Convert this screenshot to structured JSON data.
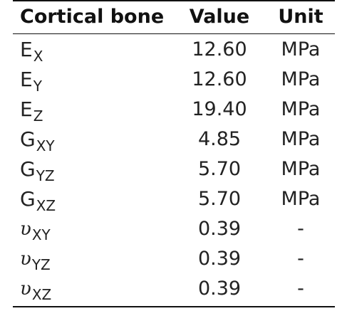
{
  "table": {
    "headers": {
      "property": "Cortical bone",
      "value": "Value",
      "unit": "Unit"
    },
    "rows": [
      {
        "symbol": "E",
        "subscript": "X",
        "value": "12.60",
        "unit": "MPa"
      },
      {
        "symbol": "E",
        "subscript": "Y",
        "value": "12.60",
        "unit": "MPa"
      },
      {
        "symbol": "E",
        "subscript": "Z",
        "value": "19.40",
        "unit": "MPa"
      },
      {
        "symbol": "G",
        "subscript": "XY",
        "value": "4.85",
        "unit": "MPa"
      },
      {
        "symbol": "G",
        "subscript": "YZ",
        "value": "5.70",
        "unit": "MPa"
      },
      {
        "symbol": "G",
        "subscript": "XZ",
        "value": "5.70",
        "unit": "MPa"
      },
      {
        "symbol": "υ",
        "subscript": "XY",
        "value": "0.39",
        "unit": "-"
      },
      {
        "symbol": "υ",
        "subscript": "YZ",
        "value": "0.39",
        "unit": "-"
      },
      {
        "symbol": "υ",
        "subscript": "XZ",
        "value": "0.39",
        "unit": "-"
      }
    ]
  }
}
